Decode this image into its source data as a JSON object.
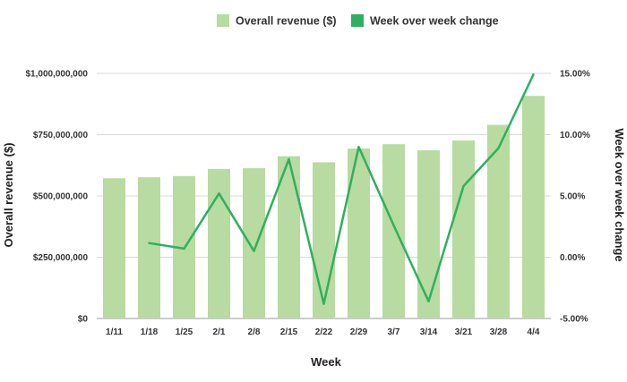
{
  "chart_data": {
    "type": "bar",
    "categories": [
      "1/11",
      "1/18",
      "1/25",
      "2/1",
      "2/8",
      "2/15",
      "2/22",
      "2/29",
      "3/7",
      "3/14",
      "3/21",
      "3/28",
      "4/4"
    ],
    "series": [
      {
        "name": "Overall revenue ($)",
        "type": "bar",
        "axis": "left",
        "color": "#b7dba0",
        "values": [
          572000000,
          576000000,
          581000000,
          610000000,
          613000000,
          662000000,
          637000000,
          693000000,
          711000000,
          686000000,
          726000000,
          790000000,
          908000000
        ]
      },
      {
        "name": "Week over week change",
        "type": "line",
        "axis": "right",
        "color": "#2eb060",
        "values": [
          null,
          1.15,
          0.7,
          5.2,
          0.5,
          8.0,
          -3.8,
          9.0,
          2.6,
          -3.6,
          5.8,
          8.9,
          14.9
        ]
      }
    ],
    "xlabel": "Week",
    "ylabel": "Overall revenue ($)",
    "y2label": "Week over week change",
    "ylim": [
      0,
      1000000000
    ],
    "y2lim": [
      -5,
      15
    ],
    "yticks": [
      "$0",
      "$250,000,000",
      "$500,000,000",
      "$750,000,000",
      "$1,000,000,000"
    ],
    "y2ticks": [
      "-5.00%",
      "0.00%",
      "5.00%",
      "10.00%",
      "15.00%"
    ],
    "grid": true,
    "legend_position": "top-center"
  }
}
